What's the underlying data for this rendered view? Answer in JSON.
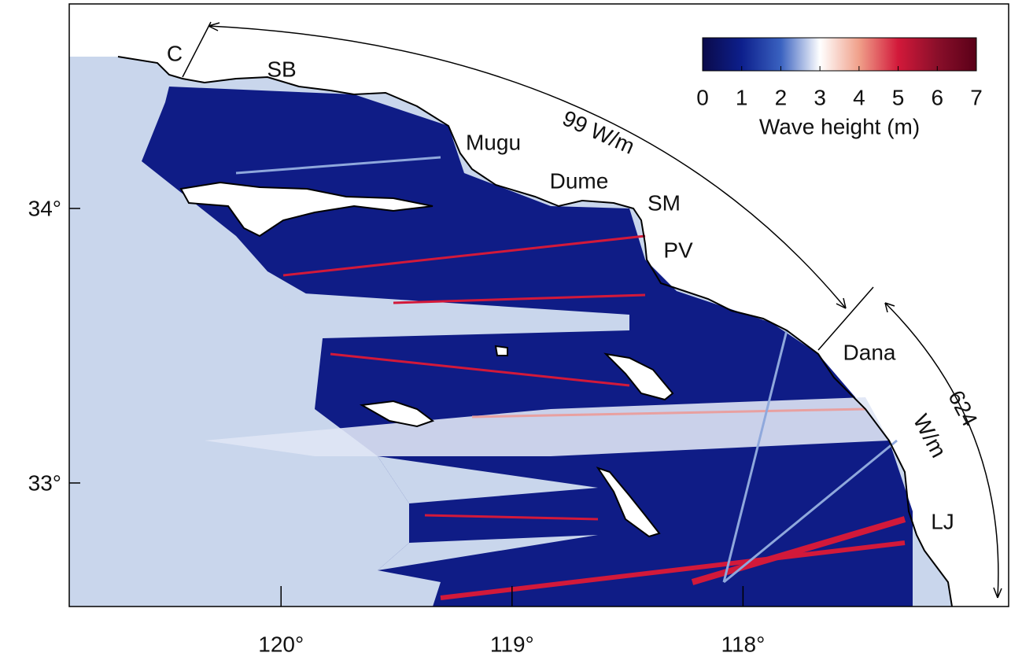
{
  "map": {
    "xlim": [
      120.917,
      116.85
    ],
    "ylim": [
      32.55,
      34.745
    ],
    "xticks": [
      {
        "value": 120,
        "label": "120°"
      },
      {
        "value": 119,
        "label": "119°"
      },
      {
        "value": 118,
        "label": "118°"
      }
    ],
    "yticks": [
      {
        "value": 34,
        "label": "34°"
      },
      {
        "value": 33,
        "label": "33°"
      }
    ],
    "places": [
      "C",
      "SB",
      "Mugu",
      "Dume",
      "SM",
      "PV",
      "Dana",
      "LJ"
    ],
    "annotations": [
      "99 W/m",
      "624",
      "W/m"
    ],
    "colorbar": {
      "label": "Wave height  (m)",
      "range": [
        0,
        7
      ],
      "ticks": [
        0,
        1,
        2,
        3,
        4,
        5,
        6,
        7
      ],
      "colors": [
        "#0a0a4a",
        "#0d1f8c",
        "#3a62c0",
        "#ffffff",
        "#f0a08a",
        "#d2193a",
        "#8a0f2a",
        "#5a0018"
      ]
    }
  }
}
